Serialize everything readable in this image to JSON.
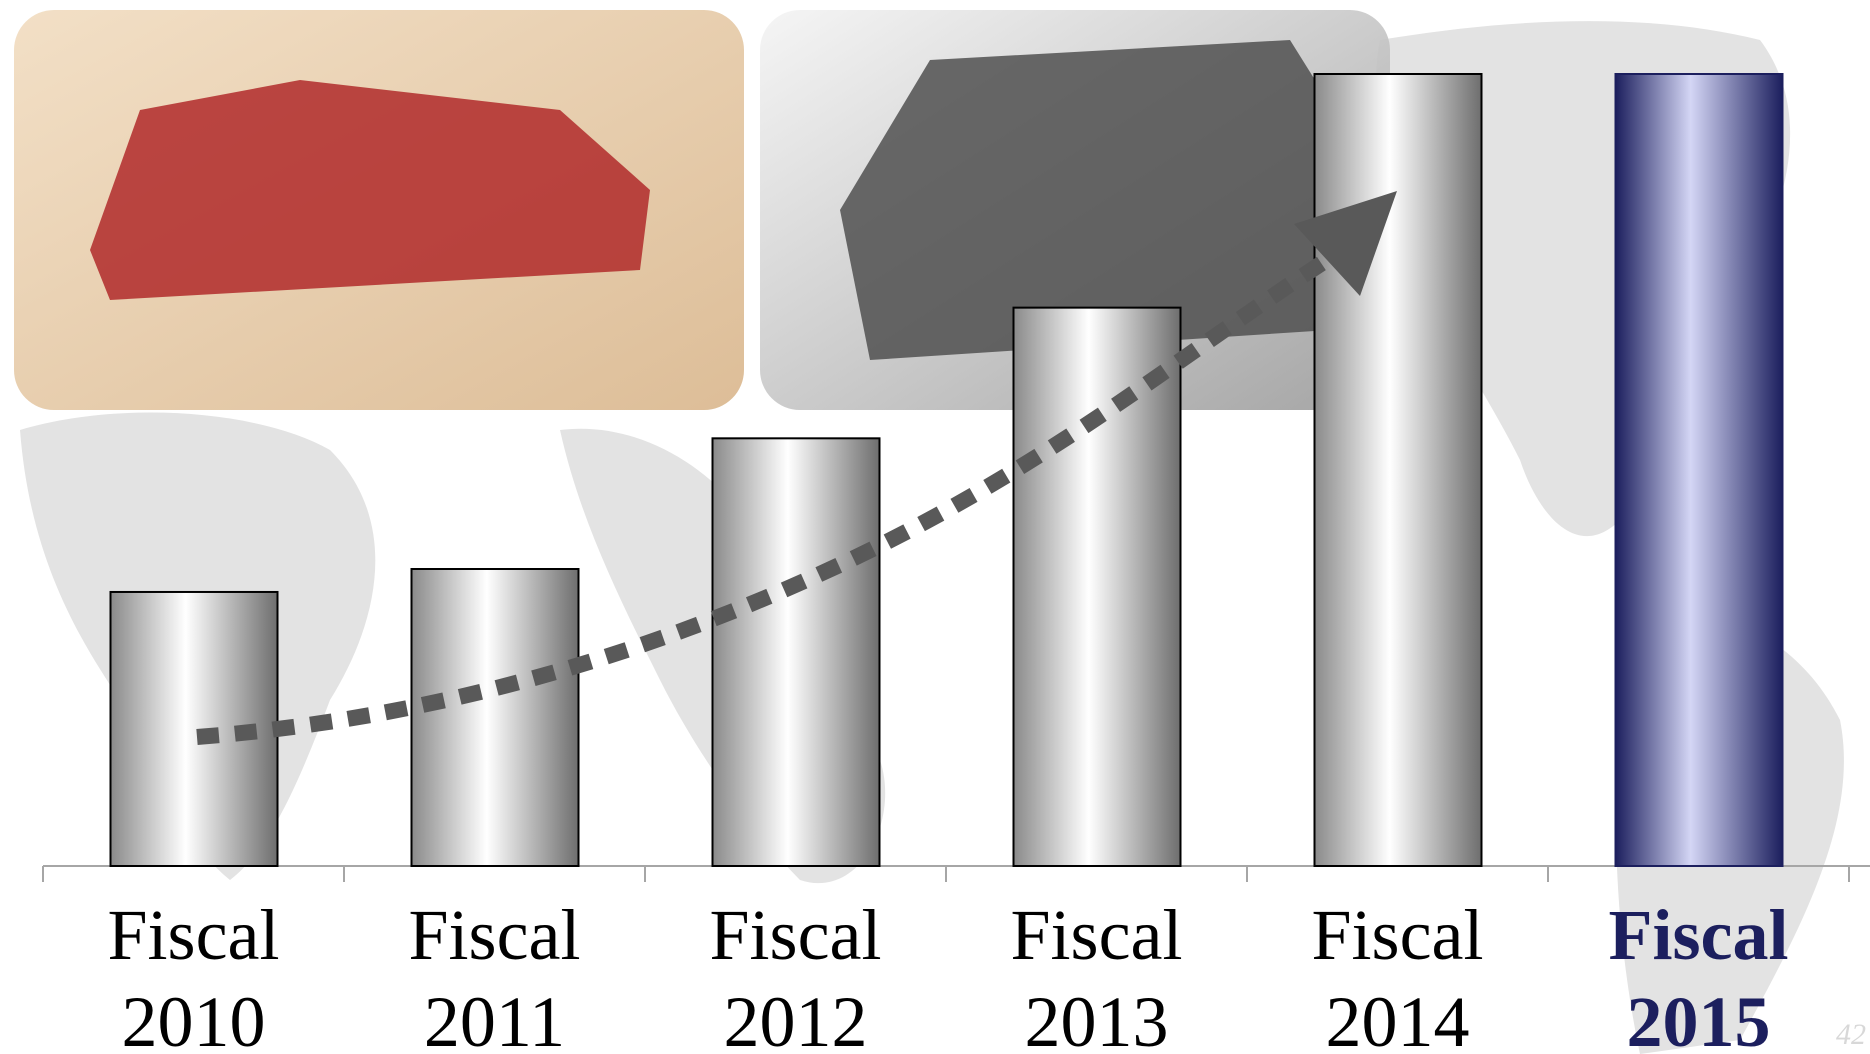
{
  "chart_data": {
    "type": "bar",
    "categories": [
      "Fiscal 2010",
      "Fiscal 2011",
      "Fiscal 2012",
      "Fiscal 2013",
      "Fiscal 2014",
      "Fiscal 2015"
    ],
    "values": [
      34.6,
      37.5,
      54,
      70.5,
      100,
      100
    ],
    "color": "#b0b0b0",
    "highlight_index": 5,
    "highlight_color": "#1c1f5e",
    "ylim": [
      0,
      100
    ]
  },
  "page_number": "42"
}
